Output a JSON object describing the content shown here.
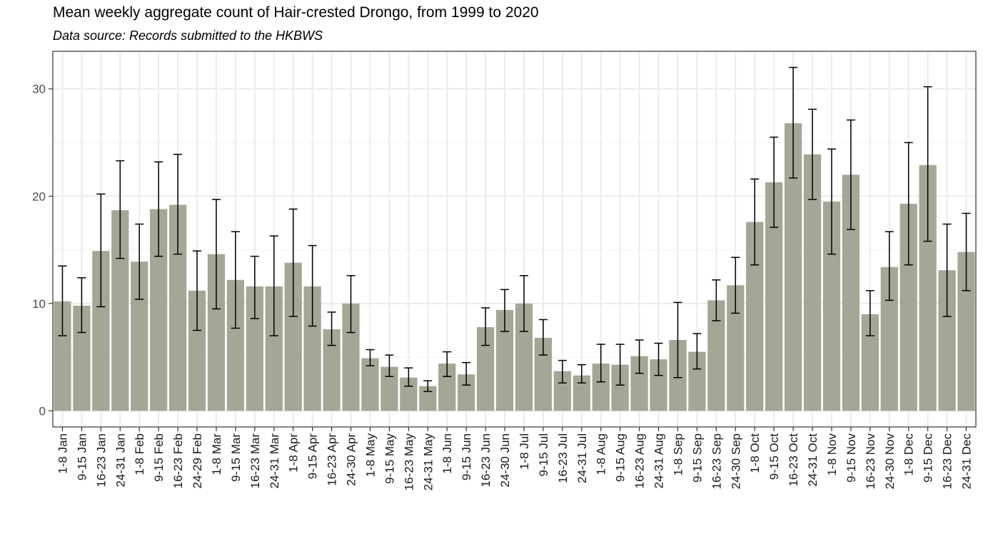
{
  "chart_data": {
    "type": "bar",
    "title": "Mean weekly aggregate count of Hair-crested Drongo, from 1999 to 2020",
    "subtitle": "Data source: Records submitted to the HKBWS",
    "xlabel": "",
    "ylabel": "",
    "ylim": [
      -1.5,
      33.5
    ],
    "yticks": [
      0,
      10,
      20,
      30
    ],
    "grid": true,
    "bar_color": "#a4a696",
    "error_bars": true,
    "categories": [
      "1-8 Jan",
      "9-15 Jan",
      "16-23 Jan",
      "24-31 Jan",
      "1-8 Feb",
      "9-15 Feb",
      "16-23 Feb",
      "24-29 Feb",
      "1-8 Mar",
      "9-15 Mar",
      "16-23 Mar",
      "24-31 Mar",
      "1-8 Apr",
      "9-15 Apr",
      "16-23 Apr",
      "24-30 Apr",
      "1-8 May",
      "9-15 May",
      "16-23 May",
      "24-31 May",
      "1-8 Jun",
      "9-15 Jun",
      "16-23 Jun",
      "24-30 Jun",
      "1-8 Jul",
      "9-15 Jul",
      "16-23 Jul",
      "24-31 Jul",
      "1-8 Aug",
      "9-15 Aug",
      "16-23 Aug",
      "24-31 Aug",
      "1-8 Sep",
      "9-15 Sep",
      "16-23 Sep",
      "24-30 Sep",
      "1-8 Oct",
      "9-15 Oct",
      "16-23 Oct",
      "24-31 Oct",
      "1-8 Nov",
      "9-15 Nov",
      "16-23 Nov",
      "24-30 Nov",
      "1-8 Dec",
      "9-15 Dec",
      "16-23 Dec",
      "24-31 Dec"
    ],
    "values": [
      10.2,
      9.8,
      14.9,
      18.7,
      13.9,
      18.8,
      19.2,
      11.2,
      14.6,
      12.2,
      11.6,
      11.6,
      13.8,
      11.6,
      7.6,
      10.0,
      4.9,
      4.1,
      3.1,
      2.3,
      4.4,
      3.4,
      7.8,
      9.4,
      10.0,
      6.8,
      3.7,
      3.3,
      4.4,
      4.3,
      5.1,
      4.8,
      6.6,
      5.5,
      10.3,
      11.7,
      17.6,
      21.3,
      26.8,
      23.9,
      19.5,
      22.0,
      9.0,
      13.4,
      19.3,
      22.9,
      13.1,
      14.8
    ],
    "err_low": [
      7.0,
      7.3,
      9.7,
      14.2,
      10.4,
      14.4,
      14.6,
      7.5,
      9.5,
      7.7,
      8.6,
      7.0,
      8.8,
      7.9,
      6.1,
      7.3,
      4.2,
      3.2,
      2.3,
      1.8,
      3.2,
      2.4,
      6.1,
      7.4,
      7.4,
      5.2,
      2.6,
      2.6,
      2.7,
      2.4,
      3.5,
      3.3,
      3.1,
      3.9,
      8.4,
      9.1,
      13.6,
      17.1,
      21.7,
      19.7,
      14.6,
      16.9,
      7.0,
      10.3,
      13.6,
      15.8,
      8.8,
      11.2
    ],
    "err_high": [
      13.5,
      12.4,
      20.2,
      23.3,
      17.4,
      23.2,
      23.9,
      14.9,
      19.7,
      16.7,
      14.4,
      16.3,
      18.8,
      15.4,
      9.2,
      12.6,
      5.7,
      5.2,
      4.0,
      2.8,
      5.5,
      4.5,
      9.6,
      11.3,
      12.6,
      8.5,
      4.7,
      4.3,
      6.2,
      6.2,
      6.6,
      6.3,
      10.1,
      7.2,
      12.2,
      14.3,
      21.6,
      25.5,
      32.0,
      28.1,
      24.4,
      27.1,
      11.2,
      16.7,
      25.0,
      30.2,
      17.4,
      18.4
    ]
  }
}
